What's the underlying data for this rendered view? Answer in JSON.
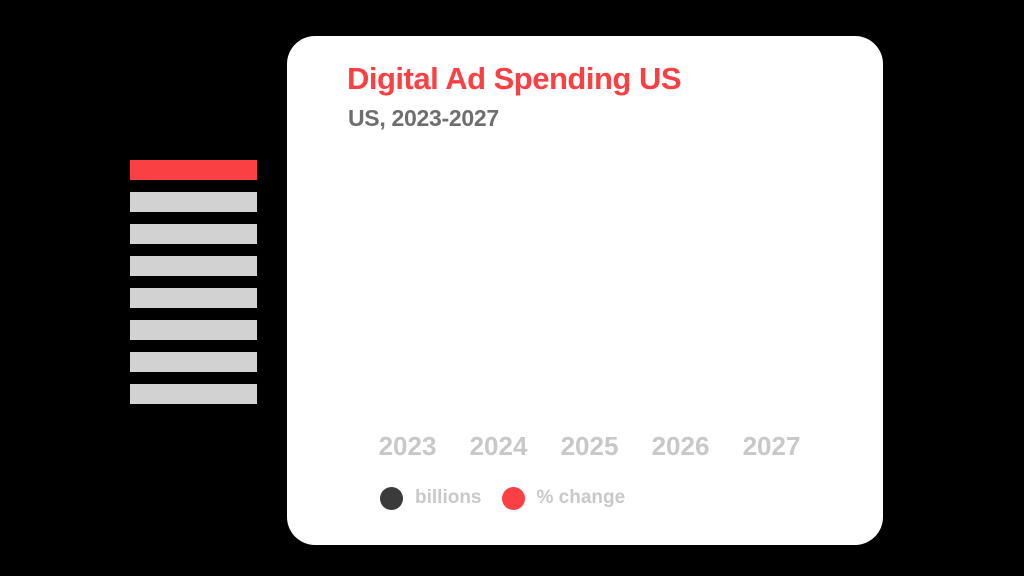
{
  "colors": {
    "background": "#000000",
    "card_bg": "#ffffff",
    "accent_red": "#fb4044",
    "subtitle_gray": "#6e6e6e",
    "axis_label_gray": "#c8c8c8",
    "legend_text_gray": "#c9c9c9",
    "legend_dot_dark": "#3b3b3b",
    "skeleton_gray": "#d2d2d2"
  },
  "card": {
    "title": "Digital Ad Spending US",
    "subtitle": "US, 2023-2027"
  },
  "skeleton_list": {
    "items": [
      {
        "variant": "accent"
      },
      {
        "variant": "gray"
      },
      {
        "variant": "gray"
      },
      {
        "variant": "gray"
      },
      {
        "variant": "gray"
      },
      {
        "variant": "gray"
      },
      {
        "variant": "gray"
      },
      {
        "variant": "gray"
      }
    ]
  },
  "chart_data": {
    "type": "bar",
    "title": "Digital Ad Spending US",
    "subtitle": "US, 2023-2027",
    "categories": [
      "2023",
      "2024",
      "2025",
      "2026",
      "2027"
    ],
    "series": [
      {
        "name": "billions",
        "color": "#3b3b3b",
        "values": []
      },
      {
        "name": "% change",
        "color": "#fb4044",
        "values": []
      }
    ],
    "legend_position": "bottom",
    "grid": false
  }
}
